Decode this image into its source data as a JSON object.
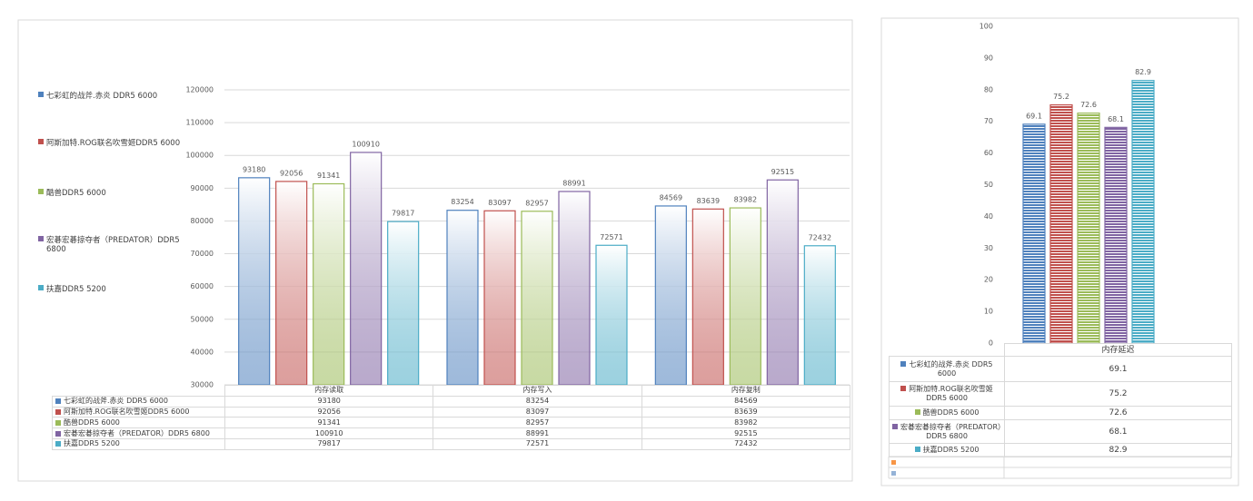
{
  "chart_data": [
    {
      "type": "bar",
      "categories": [
        "内存读取",
        "内存写入",
        "内存复制"
      ],
      "series": [
        {
          "name": "七彩虹的战斧.赤炎 DDR5 6000",
          "color": "#4f81bd",
          "values": [
            93180,
            83254,
            84569
          ]
        },
        {
          "name": "阿斯加特.ROG联名吹雪姬DDR5 6000",
          "color": "#c0504d",
          "values": [
            92056,
            83097,
            83639
          ]
        },
        {
          "name": "酷兽DDR5 6000",
          "color": "#9bbb59",
          "values": [
            91341,
            82957,
            83982
          ]
        },
        {
          "name": "宏碁宏碁掠夺者（PREDATOR）DDR5 6800",
          "color": "#8064a2",
          "values": [
            100910,
            88991,
            92515
          ]
        },
        {
          "name": "扶嘉DDR5 5200",
          "color": "#4bacc6",
          "values": [
            79817,
            72571,
            72432
          ]
        }
      ],
      "ylim": [
        30000,
        120000
      ],
      "yticks": [
        30000,
        40000,
        50000,
        60000,
        70000,
        80000,
        90000,
        100000,
        110000,
        120000
      ],
      "grid": true,
      "legend": "left"
    },
    {
      "type": "bar",
      "categories": [
        "内存延迟"
      ],
      "series": [
        {
          "name": "七彩虹的战斧.赤炎 DDR5 6000",
          "color": "#4f81bd",
          "values": [
            69.1
          ]
        },
        {
          "name": "阿斯加特.ROG联名吹雪姬DDR5 6000",
          "color": "#c0504d",
          "values": [
            75.2
          ]
        },
        {
          "name": "酷兽DDR5 6000",
          "color": "#9bbb59",
          "values": [
            72.6
          ]
        },
        {
          "name": "宏碁宏碁掠夺者（PREDATOR）DDR5 6800",
          "color": "#8064a2",
          "values": [
            68.1
          ]
        },
        {
          "name": "扶嘉DDR5 5200",
          "color": "#4bacc6",
          "values": [
            82.9
          ]
        }
      ],
      "ylim": [
        0,
        100
      ],
      "yticks": [
        0,
        10,
        20,
        30,
        40,
        50,
        60,
        70,
        80,
        90,
        100
      ],
      "grid": false
    }
  ]
}
